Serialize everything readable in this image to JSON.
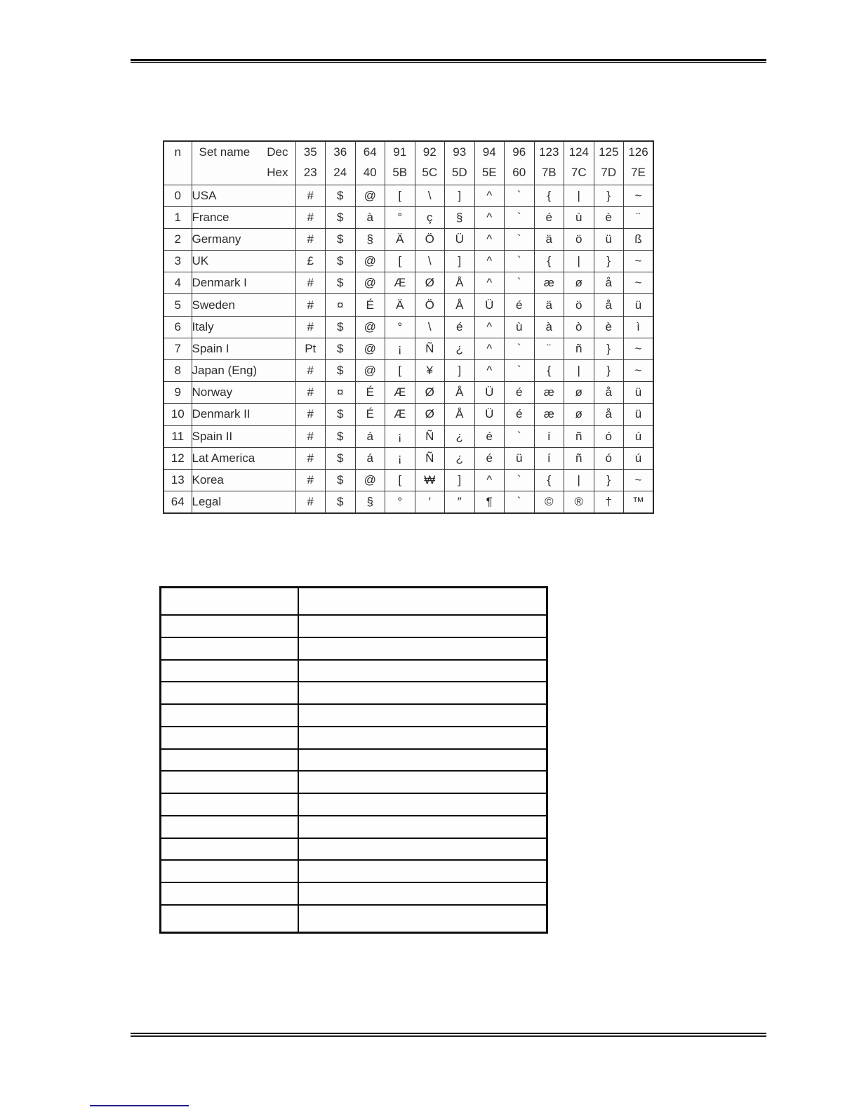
{
  "charset_table": {
    "header": {
      "n_label": "n",
      "set_name_label": "Set name",
      "dec_label": "Dec",
      "hex_label": "Hex",
      "code_columns": [
        {
          "dec": "35",
          "hex": "23"
        },
        {
          "dec": "36",
          "hex": "24"
        },
        {
          "dec": "64",
          "hex": "40"
        },
        {
          "dec": "91",
          "hex": "5B"
        },
        {
          "dec": "92",
          "hex": "5C"
        },
        {
          "dec": "93",
          "hex": "5D"
        },
        {
          "dec": "94",
          "hex": "5E"
        },
        {
          "dec": "96",
          "hex": "60"
        },
        {
          "dec": "123",
          "hex": "7B"
        },
        {
          "dec": "124",
          "hex": "7C"
        },
        {
          "dec": "125",
          "hex": "7D"
        },
        {
          "dec": "126",
          "hex": "7E"
        }
      ]
    },
    "rows": [
      {
        "n": "0",
        "name": "USA",
        "chars": [
          "#",
          "$",
          "@",
          "[",
          "\\",
          "]",
          "^",
          "`",
          "{",
          "|",
          "}",
          "~"
        ]
      },
      {
        "n": "1",
        "name": "France",
        "chars": [
          "#",
          "$",
          "à",
          "°",
          "ç",
          "§",
          "^",
          "`",
          "é",
          "ù",
          "è",
          "¨"
        ]
      },
      {
        "n": "2",
        "name": "Germany",
        "chars": [
          "#",
          "$",
          "§",
          "Ä",
          "Ö",
          "Ü",
          "^",
          "`",
          "ä",
          "ö",
          "ü",
          "ß"
        ]
      },
      {
        "n": "3",
        "name": "UK",
        "chars": [
          "£",
          "$",
          "@",
          "[",
          "\\",
          "]",
          "^",
          "`",
          "{",
          "|",
          "}",
          "~"
        ]
      },
      {
        "n": "4",
        "name": "Denmark I",
        "chars": [
          "#",
          "$",
          "@",
          "Æ",
          "Ø",
          "Å",
          "^",
          "`",
          "æ",
          "ø",
          "å",
          "~"
        ]
      },
      {
        "n": "5",
        "name": "Sweden",
        "chars": [
          "#",
          "¤",
          "É",
          "Ä",
          "Ö",
          "Å",
          "Ü",
          "é",
          "ä",
          "ö",
          "å",
          "ü"
        ]
      },
      {
        "n": "6",
        "name": "Italy",
        "chars": [
          "#",
          "$",
          "@",
          "°",
          "\\",
          "é",
          "^",
          "ù",
          "à",
          "ò",
          "è",
          "ì"
        ]
      },
      {
        "n": "7",
        "name": "Spain I",
        "chars": [
          "Pt",
          "$",
          "@",
          "¡",
          "Ñ",
          "¿",
          "^",
          "`",
          "¨",
          "ñ",
          "}",
          "~"
        ]
      },
      {
        "n": "8",
        "name": "Japan (Eng)",
        "chars": [
          "#",
          "$",
          "@",
          "[",
          "¥",
          "]",
          "^",
          "`",
          "{",
          "|",
          "}",
          "~"
        ]
      },
      {
        "n": "9",
        "name": "Norway",
        "chars": [
          "#",
          "¤",
          "É",
          "Æ",
          "Ø",
          "Å",
          "Ü",
          "é",
          "æ",
          "ø",
          "å",
          "ü"
        ]
      },
      {
        "n": "10",
        "name": "Denmark II",
        "chars": [
          "#",
          "$",
          "É",
          "Æ",
          "Ø",
          "Å",
          "Ü",
          "é",
          "æ",
          "ø",
          "å",
          "ü"
        ]
      },
      {
        "n": "11",
        "name": "Spain II",
        "chars": [
          "#",
          "$",
          "á",
          "¡",
          "Ñ",
          "¿",
          "é",
          "`",
          "í",
          "ñ",
          "ó",
          "ú"
        ]
      },
      {
        "n": "12",
        "name": "Lat America",
        "chars": [
          "#",
          "$",
          "á",
          "¡",
          "Ñ",
          "¿",
          "é",
          "ü",
          "í",
          "ñ",
          "ó",
          "ú"
        ]
      },
      {
        "n": "13",
        "name": "Korea",
        "chars": [
          "#",
          "$",
          "@",
          "[",
          "₩",
          "]",
          "^",
          "`",
          "{",
          "|",
          "}",
          "~"
        ]
      },
      {
        "n": "64",
        "name": "Legal",
        "chars": [
          "#",
          "$",
          "§",
          "°",
          "′",
          "″",
          "¶",
          "`",
          "©",
          "®",
          "†",
          "™"
        ]
      }
    ]
  },
  "empty_table": {
    "row_count": 15,
    "column_count": 2
  },
  "footer_link": {
    "underline_color": "#1d1d8e"
  }
}
